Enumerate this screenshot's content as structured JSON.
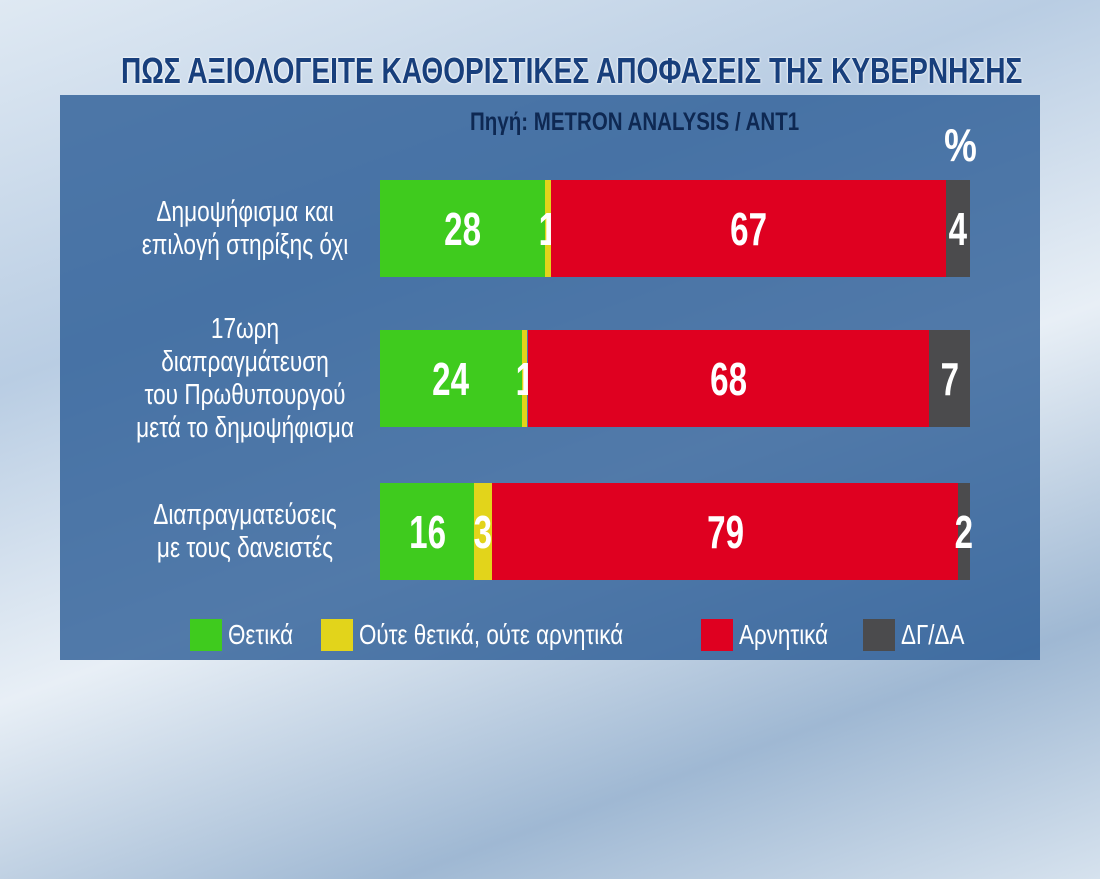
{
  "chart_data": {
    "type": "stacked-bar-horizontal",
    "title": "ΠΩΣ ΑΞΙΟΛΟΓΕΙΤΕ ΚΑΘΟΡΙΣΤΙΚΕΣ ΑΠΟΦΑΣΕΙΣ ΤΗΣ ΚΥΒΕΡΝΗΣΗΣ",
    "subtitle": "Πηγή: METRON ANALYSIS / ANT1",
    "unit": "%",
    "categories": [
      "Δημοψήφισμα και\nεπιλογή στηρίξης όχι",
      "17ωρη διαπραγμάτευση\nτου Πρωθυπουργού\nμετά το δημοψήφισμα",
      "Διαπραγματεύσεις\nμε τους δανειστές"
    ],
    "xlim": [
      0,
      100
    ],
    "legend": "bottom",
    "series": [
      {
        "name": "Θετικά",
        "color": "#3fcb1e",
        "values": [
          28,
          24,
          16
        ]
      },
      {
        "name": "Ούτε θετικά, ούτε αρνητικά",
        "color": "#e2d41b",
        "values": [
          1,
          1,
          3
        ]
      },
      {
        "name": "Αρνητικά",
        "color": "#df0020",
        "values": [
          67,
          68,
          79
        ]
      },
      {
        "name": "ΔΓ/ΔΑ",
        "color": "#4b4b4d",
        "values": [
          4,
          7,
          2
        ]
      }
    ]
  }
}
